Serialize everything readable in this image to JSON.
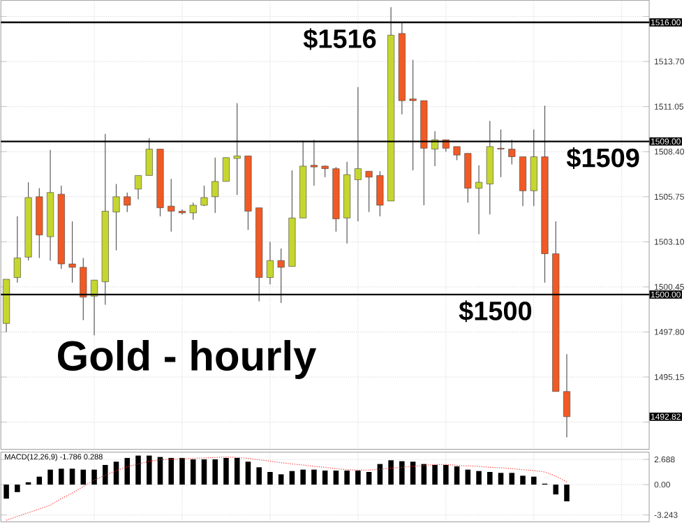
{
  "chart_data": [
    {
      "type": "candlestick",
      "title": "Gold - hourly",
      "categories": [
        null,
        null,
        null,
        null,
        null,
        null,
        null,
        null,
        null,
        null,
        null,
        null,
        null,
        null,
        null,
        null,
        null,
        null,
        null,
        null,
        null,
        null,
        null,
        null,
        null,
        null,
        null,
        null,
        null,
        null,
        null,
        null,
        null,
        null,
        null,
        null,
        null,
        null,
        null,
        null,
        null,
        null,
        null,
        null,
        null,
        null,
        null,
        null,
        null,
        null,
        null,
        null,
        null,
        null,
        null,
        null,
        null,
        null,
        null
      ],
      "ohlc": [
        [
          1498.3,
          1500.9,
          1497.8,
          1500.9
        ],
        [
          1501.0,
          1504.6,
          1500.7,
          1502.15
        ],
        [
          1502.2,
          1506.6,
          1502.0,
          1505.7
        ],
        [
          1505.75,
          1506.25,
          1502.15,
          1503.5
        ],
        [
          1503.4,
          1508.5,
          1502.0,
          1506.0
        ],
        [
          1505.9,
          1506.4,
          1501.5,
          1501.8
        ],
        [
          1501.8,
          1504.3,
          1500.7,
          1501.6
        ],
        [
          1501.6,
          1502.15,
          1498.5,
          1499.85
        ],
        [
          1499.9,
          1500.85,
          1497.6,
          1500.85
        ],
        [
          1500.75,
          1509.45,
          1499.4,
          1504.9
        ],
        [
          1504.85,
          1506.5,
          1502.6,
          1505.75
        ],
        [
          1505.75,
          1506.0,
          1504.85,
          1505.25
        ],
        [
          1506.2,
          1507.0,
          1505.6,
          1507.0
        ],
        [
          1507.0,
          1509.2,
          1507.0,
          1508.55
        ],
        [
          1508.55,
          1508.55,
          1504.6,
          1505.1
        ],
        [
          1505.2,
          1506.8,
          1503.7,
          1504.9
        ],
        [
          1504.9,
          1505.0,
          1504.7,
          1504.8
        ],
        [
          1504.8,
          1505.4,
          1504.4,
          1505.25
        ],
        [
          1505.25,
          1506.4,
          1505.2,
          1505.7
        ],
        [
          1505.75,
          1508.05,
          1504.8,
          1506.65
        ],
        [
          1506.65,
          1508.05,
          1506.65,
          1508.05
        ],
        [
          1508.0,
          1511.25,
          1505.85,
          1508.15
        ],
        [
          1508.15,
          1508.15,
          1503.8,
          1504.9
        ],
        [
          1505.1,
          1505.1,
          1499.6,
          1501.0
        ],
        [
          1501.0,
          1503.1,
          1500.6,
          1502.0
        ],
        [
          1502.0,
          1502.7,
          1499.5,
          1501.6
        ],
        [
          1501.65,
          1507.3,
          1501.65,
          1504.5
        ],
        [
          1504.5,
          1509.05,
          1504.5,
          1507.55
        ],
        [
          1507.6,
          1509.1,
          1506.4,
          1507.5
        ],
        [
          1507.55,
          1507.6,
          1506.9,
          1507.4
        ],
        [
          1507.4,
          1507.5,
          1503.7,
          1504.45
        ],
        [
          1504.5,
          1507.8,
          1503.0,
          1507.05
        ],
        [
          1506.75,
          1512.2,
          1504.3,
          1507.4
        ],
        [
          1507.25,
          1507.25,
          1504.85,
          1506.9
        ],
        [
          1507.0,
          1507.25,
          1504.6,
          1505.25
        ],
        [
          1505.5,
          1516.9,
          1505.5,
          1515.25
        ],
        [
          1515.35,
          1516.0,
          1510.6,
          1511.4
        ],
        [
          1511.5,
          1513.8,
          1507.3,
          1511.4
        ],
        [
          1511.4,
          1511.4,
          1505.25,
          1508.6
        ],
        [
          1508.55,
          1509.6,
          1507.55,
          1509.1
        ],
        [
          1509.1,
          1509.1,
          1508.4,
          1508.6
        ],
        [
          1508.7,
          1508.7,
          1507.9,
          1508.2
        ],
        [
          1508.3,
          1508.3,
          1505.4,
          1506.25
        ],
        [
          1506.25,
          1507.6,
          1503.55,
          1506.6
        ],
        [
          1506.5,
          1510.2,
          1504.7,
          1508.7
        ],
        [
          1508.6,
          1509.7,
          1506.9,
          1508.55
        ],
        [
          1508.55,
          1509.1,
          1507.65,
          1508.1
        ],
        [
          1508.1,
          1508.1,
          1505.2,
          1506.1
        ],
        [
          1506.1,
          1509.7,
          1505.2,
          1508.1
        ],
        [
          1508.1,
          1511.1,
          1500.7,
          1502.4
        ],
        [
          1502.4,
          1504.3,
          1494.3,
          1494.3
        ],
        [
          1494.3,
          1496.5,
          1491.6,
          1492.82
        ],
        null,
        null,
        null,
        null,
        null,
        null,
        null
      ],
      "colors": [
        "#c5d62f",
        "#c5d62f",
        "#c5d62f",
        "#f15a24",
        "#c5d62f",
        "#f15a24",
        "#f15a24",
        "#f15a24",
        "#c5d62f",
        "#c5d62f",
        "#c5d62f",
        "#f15a24",
        "#c5d62f",
        "#c5d62f",
        "#f15a24",
        "#f15a24",
        "#f15a24",
        "#c5d62f",
        "#c5d62f",
        "#c5d62f",
        "#c5d62f",
        "#c5d62f",
        "#f15a24",
        "#f15a24",
        "#c5d62f",
        "#f15a24",
        "#c5d62f",
        "#c5d62f",
        "#f15a24",
        "#f15a24",
        "#f15a24",
        "#c5d62f",
        "#c5d62f",
        "#f15a24",
        "#f15a24",
        "#c5d62f",
        "#f15a24",
        "#f15a24",
        "#f15a24",
        "#c5d62f",
        "#f15a24",
        "#f15a24",
        "#f15a24",
        "#c5d62f",
        "#c5d62f",
        "#f15a24",
        "#f15a24",
        "#f15a24",
        "#c5d62f",
        "#f15a24",
        "#f15a24",
        "#f15a24",
        null,
        null,
        null,
        null,
        null,
        null,
        null
      ],
      "ylim": [
        1490.9,
        1517.3
      ],
      "yticks": [
        {
          "value": 1516.35,
          "label": null
        },
        {
          "value": 1513.7,
          "label": "1513.70"
        },
        {
          "value": 1511.05,
          "label": "1511.05"
        },
        {
          "value": 1508.4,
          "label": "1508.40"
        },
        {
          "value": 1505.75,
          "label": "1505.75"
        },
        {
          "value": 1503.1,
          "label": "1503.10"
        },
        {
          "value": 1500.45,
          "label": "1500.45"
        },
        {
          "value": 1497.8,
          "label": "1497.80"
        },
        {
          "value": 1495.15,
          "label": "1495.15"
        },
        {
          "value": 1492.5,
          "label": null
        }
      ],
      "tick_labels": "y",
      "grid": true,
      "ref_lines": [
        {
          "axis": "y",
          "value": 1516,
          "label": "$1516",
          "color": "#000000"
        },
        {
          "axis": "y",
          "value": 1509,
          "label": "$1509",
          "color": "#000000"
        },
        {
          "axis": "y",
          "value": 1500,
          "label": "$1500",
          "color": "#000000"
        }
      ],
      "annotations": [
        "1516.00",
        "1509.00",
        "1500.00",
        "1492.82"
      ]
    },
    {
      "type": "bar",
      "title": "MACD(12,26,9) -1.786 0.288",
      "categories": [
        null,
        null,
        null,
        null,
        null,
        null,
        null,
        null,
        null,
        null,
        null,
        null,
        null,
        null,
        null,
        null,
        null,
        null,
        null,
        null,
        null,
        null,
        null,
        null,
        null,
        null,
        null,
        null,
        null,
        null,
        null,
        null,
        null,
        null,
        null,
        null,
        null,
        null,
        null,
        null,
        null,
        null,
        null,
        null,
        null,
        null,
        null,
        null,
        null,
        null,
        null,
        null,
        null,
        null,
        null,
        null,
        null,
        null,
        null
      ],
      "series": [
        {
          "color": "#000000",
          "values": [
            -1.5,
            -0.8,
            0.25,
            0.85,
            1.6,
            1.7,
            1.7,
            1.6,
            1.6,
            2.1,
            2.45,
            2.85,
            3.1,
            3.1,
            2.95,
            2.85,
            2.85,
            2.7,
            2.7,
            2.7,
            2.85,
            2.85,
            2.45,
            1.85,
            1.35,
            1.1,
            1.45,
            1.6,
            1.6,
            1.5,
            1.5,
            1.5,
            1.5,
            1.35,
            2.2,
            2.6,
            2.5,
            2.45,
            2.2,
            2.1,
            2.1,
            1.95,
            1.6,
            1.45,
            1.35,
            1.25,
            1.25,
            0.95,
            0.85,
            0.1,
            -1.05,
            -1.786,
            null,
            null,
            null,
            null,
            null,
            null,
            null
          ]
        },
        {
          "type": "line",
          "color": "#ff3030",
          "line_style": "dotted",
          "marker": "none",
          "values": [
            -3.8,
            -3.4,
            -3.0,
            -2.6,
            -2.2,
            -1.5,
            -0.9,
            -0.2,
            0.5,
            1.0,
            1.5,
            1.9,
            2.2,
            2.5,
            2.65,
            2.7,
            2.75,
            2.8,
            2.85,
            2.9,
            2.95,
            2.9,
            2.8,
            2.65,
            2.5,
            2.35,
            2.2,
            2.1,
            1.95,
            1.85,
            1.7,
            1.6,
            1.55,
            1.55,
            1.65,
            1.75,
            1.85,
            1.95,
            2.05,
            2.15,
            2.15,
            2.05,
            2.0,
            1.95,
            1.85,
            1.8,
            1.7,
            1.6,
            1.5,
            1.35,
            0.9,
            0.288,
            null,
            null,
            null,
            null,
            null,
            null,
            null
          ]
        }
      ],
      "ylim": [
        -3.98,
        3.47
      ],
      "yticks": [
        {
          "value": 2.688,
          "label": "2.688"
        },
        {
          "value": 0,
          "label": "0.00"
        },
        {
          "value": -3.243,
          "label": "-3.243"
        }
      ],
      "tick_labels": "y",
      "grid": true
    }
  ]
}
